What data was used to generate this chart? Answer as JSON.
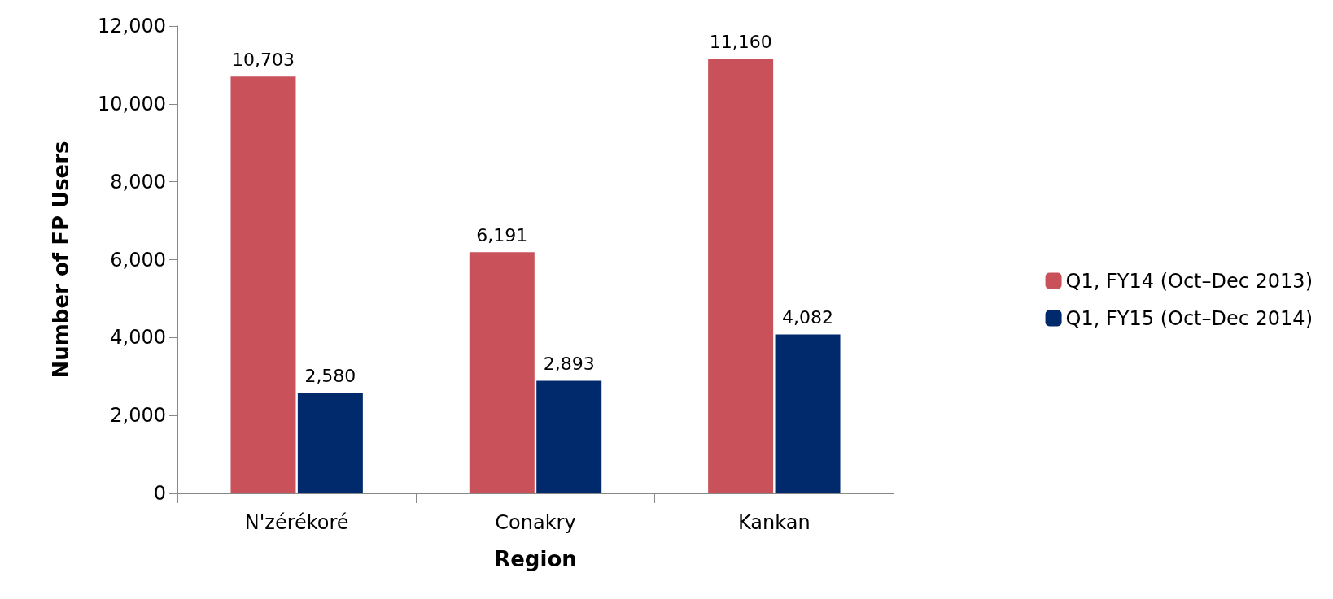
{
  "chart_data": {
    "type": "bar",
    "xlabel": "Region",
    "ylabel": "Number of FP Users",
    "categories": [
      "N'zérékoré",
      "Conakry",
      "Kankan"
    ],
    "series": [
      {
        "name": "Q1, FY14 (Oct–Dec 2013)",
        "color": "#c9525a",
        "values": [
          10703,
          6191,
          11160
        ],
        "value_labels": [
          "10,703",
          "6,191",
          "11,160"
        ]
      },
      {
        "name": "Q1, FY15 (Oct–Dec 2014)",
        "color": "#002a6c",
        "values": [
          2580,
          2893,
          4082
        ],
        "value_labels": [
          "2,580",
          "2,893",
          "4,082"
        ]
      }
    ],
    "ylim": [
      0,
      12000
    ],
    "yticks": [
      0,
      {
        "value": 2000,
        "label": "2,000"
      },
      {
        "value": 4000,
        "label": "4,000"
      },
      {
        "value": 6000,
        "label": "6,000"
      },
      {
        "value": 8000,
        "label": "8,000"
      },
      {
        "value": 10000,
        "label": "10,000"
      },
      {
        "value": 12000,
        "label": "12,000"
      }
    ],
    "grid": false,
    "legend": "right"
  }
}
